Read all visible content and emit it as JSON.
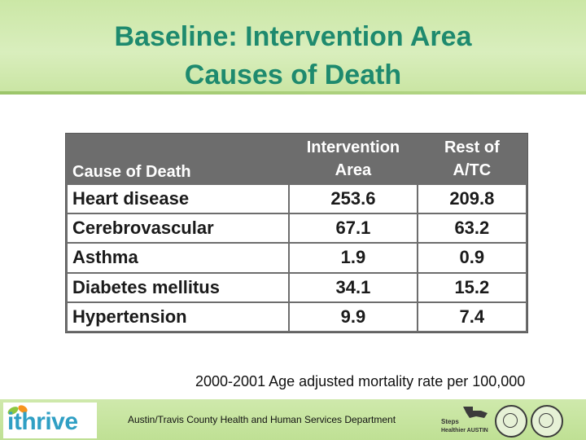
{
  "title": {
    "line1": "Baseline: Intervention Area",
    "line2": "Causes of Death"
  },
  "table": {
    "headers": {
      "cause": "Cause of Death",
      "intervention_line1": "Intervention",
      "intervention_line2": "Area",
      "rest_line1": "Rest of",
      "rest_line2": "A/TC"
    },
    "rows": [
      {
        "cause": "Heart disease",
        "intervention": "253.6",
        "rest": "209.8"
      },
      {
        "cause": "Cerebrovascular",
        "intervention": "67.1",
        "rest": "63.2"
      },
      {
        "cause": "Asthma",
        "intervention": "1.9",
        "rest": "0.9"
      },
      {
        "cause": "Diabetes mellitus",
        "intervention": "34.1",
        "rest": "15.2"
      },
      {
        "cause": "Hypertension",
        "intervention": "9.9",
        "rest": "7.4"
      }
    ]
  },
  "note": "2000-2001 Age adjusted mortality rate per 100,000",
  "footer": {
    "logo": "ithrive",
    "department": "Austin/Travis County Health and Human Services Department",
    "icons": [
      "steps-to-a-healthier-austin-logo",
      "city-seal-icon",
      "county-seal-icon"
    ]
  },
  "colors": {
    "title": "#1e8a6e",
    "band": "#cbe7a6",
    "table_header": "#6d6d6d"
  }
}
